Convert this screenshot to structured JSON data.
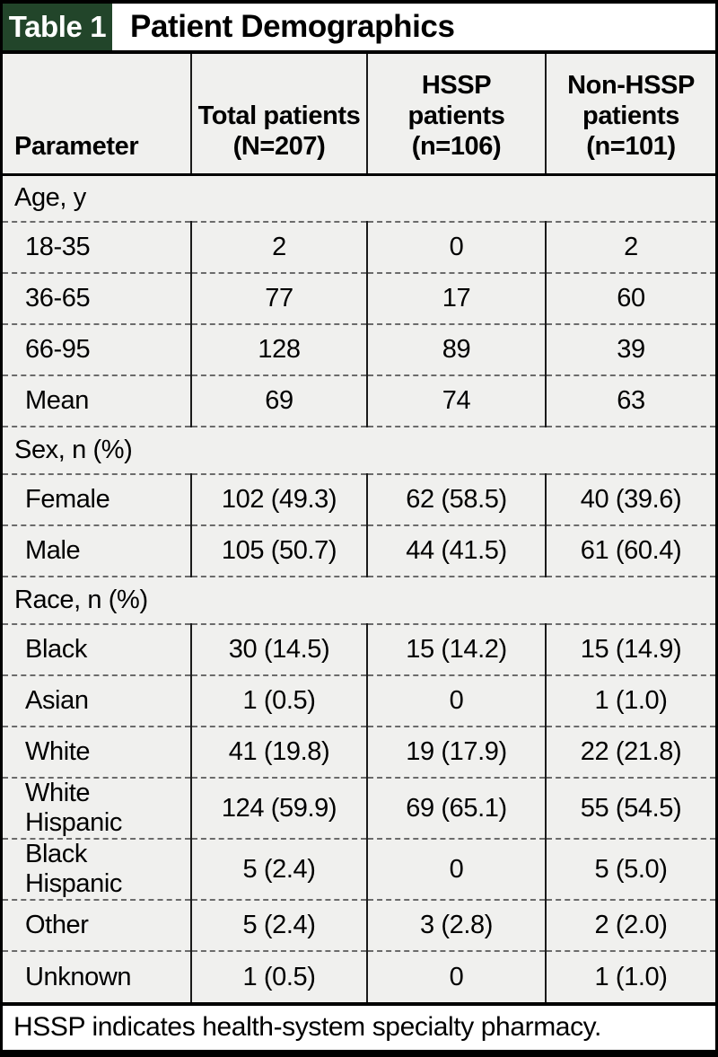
{
  "title_bar": {
    "tag": "Table 1",
    "title": "Patient Demographics"
  },
  "colors": {
    "tag_background": "#22452a",
    "tag_text": "#ffffff",
    "cell_background": "#f0f0ee",
    "border": "#000000",
    "row_divider": "#6b6b6b"
  },
  "table": {
    "columns": [
      "Parameter",
      "Total patients\n(N=207)",
      "HSSP\npatients\n(n=106)",
      "Non-HSSP\npatients\n(n=101)"
    ],
    "rows": [
      {
        "type": "section",
        "label": "Age, y"
      },
      {
        "type": "data",
        "label": "18-35",
        "values": [
          "2",
          "0",
          "2"
        ]
      },
      {
        "type": "data",
        "label": "36-65",
        "values": [
          "77",
          "17",
          "60"
        ]
      },
      {
        "type": "data",
        "label": "66-95",
        "values": [
          "128",
          "89",
          "39"
        ]
      },
      {
        "type": "data",
        "label": "Mean",
        "values": [
          "69",
          "74",
          "63"
        ]
      },
      {
        "type": "section",
        "label": "Sex, n (%)"
      },
      {
        "type": "data",
        "label": "Female",
        "values": [
          "102 (49.3)",
          "62 (58.5)",
          "40 (39.6)"
        ]
      },
      {
        "type": "data",
        "label": "Male",
        "values": [
          "105 (50.7)",
          "44 (41.5)",
          "61 (60.4)"
        ]
      },
      {
        "type": "section",
        "label": "Race, n (%)"
      },
      {
        "type": "data",
        "label": "Black",
        "values": [
          "30 (14.5)",
          "15 (14.2)",
          "15 (14.9)"
        ]
      },
      {
        "type": "data",
        "label": "Asian",
        "values": [
          "1 (0.5)",
          "0",
          "1 (1.0)"
        ]
      },
      {
        "type": "data",
        "label": "White",
        "values": [
          "41 (19.8)",
          "19 (17.9)",
          "22 (21.8)"
        ]
      },
      {
        "type": "data",
        "label": "White Hispanic",
        "values": [
          "124 (59.9)",
          "69 (65.1)",
          "55 (54.5)"
        ]
      },
      {
        "type": "data",
        "label": "Black Hispanic",
        "values": [
          "5 (2.4)",
          "0",
          "5 (5.0)"
        ]
      },
      {
        "type": "data",
        "label": "Other",
        "values": [
          "5 (2.4)",
          "3 (2.8)",
          "2 (2.0)"
        ]
      },
      {
        "type": "data",
        "label": "Unknown",
        "values": [
          "1 (0.5)",
          "0",
          "1 (1.0)"
        ]
      }
    ]
  },
  "footer": {
    "note": "HSSP indicates health-system specialty pharmacy."
  }
}
